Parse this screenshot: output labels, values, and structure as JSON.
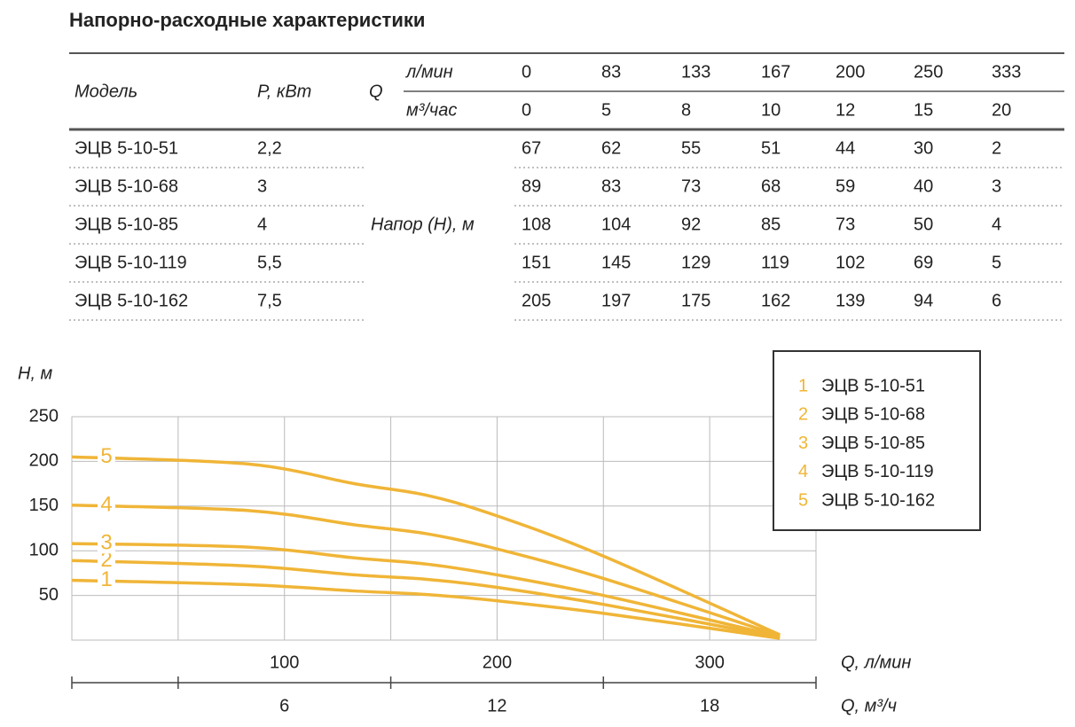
{
  "title": "Напорно-расходные характеристики",
  "table": {
    "header": {
      "model": "Модель",
      "power": "P, кВт",
      "q": "Q",
      "q_lmin": "л/мин",
      "q_m3h": "м³/час",
      "head": "Напор (H), м"
    },
    "flow_lmin": [
      0,
      83,
      133,
      167,
      200,
      250,
      333
    ],
    "flow_m3h": [
      0,
      5,
      8,
      10,
      12,
      15,
      20
    ],
    "rows": [
      {
        "model": "ЭЦВ 5-10-51",
        "power": "2,2",
        "head": [
          67,
          62,
          55,
          51,
          44,
          30,
          2
        ]
      },
      {
        "model": "ЭЦВ 5-10-68",
        "power": "3",
        "head": [
          89,
          83,
          73,
          68,
          59,
          40,
          3
        ]
      },
      {
        "model": "ЭЦВ 5-10-85",
        "power": "4",
        "head": [
          108,
          104,
          92,
          85,
          73,
          50,
          4
        ]
      },
      {
        "model": "ЭЦВ 5-10-119",
        "power": "5,5",
        "head": [
          151,
          145,
          129,
          119,
          102,
          69,
          5
        ]
      },
      {
        "model": "ЭЦВ 5-10-162",
        "power": "7,5",
        "head": [
          205,
          197,
          175,
          162,
          139,
          94,
          6
        ]
      }
    ]
  },
  "chart_data": {
    "type": "line",
    "ylabel": "H, м",
    "xlabel": "Q, л/мин",
    "x2label": "Q, м³/ч",
    "x": [
      0,
      83,
      133,
      167,
      200,
      250,
      333
    ],
    "xlim": [
      0,
      350
    ],
    "xticks": [
      100,
      200,
      300
    ],
    "xminor": [
      50,
      150,
      250
    ],
    "x2lim": [
      0,
      21
    ],
    "x2ticks": [
      6,
      12,
      18
    ],
    "x2minor": [
      3,
      9,
      15
    ],
    "ylim": [
      0,
      250
    ],
    "yticks": [
      50,
      100,
      150,
      200,
      250
    ],
    "grid": true,
    "legend": "upper right",
    "color": "#f0b537",
    "series": [
      {
        "label": "1",
        "name": "ЭЦВ 5-10-51",
        "values": [
          67,
          62,
          55,
          51,
          44,
          30,
          2
        ]
      },
      {
        "label": "2",
        "name": "ЭЦВ 5-10-68",
        "values": [
          89,
          83,
          73,
          68,
          59,
          40,
          3
        ]
      },
      {
        "label": "3",
        "name": "ЭЦВ 5-10-85",
        "values": [
          108,
          104,
          92,
          85,
          73,
          50,
          4
        ]
      },
      {
        "label": "4",
        "name": "ЭЦВ 5-10-119",
        "values": [
          151,
          145,
          129,
          119,
          102,
          69,
          5
        ]
      },
      {
        "label": "5",
        "name": "ЭЦВ 5-10-162",
        "values": [
          205,
          197,
          175,
          162,
          139,
          94,
          6
        ]
      }
    ]
  }
}
